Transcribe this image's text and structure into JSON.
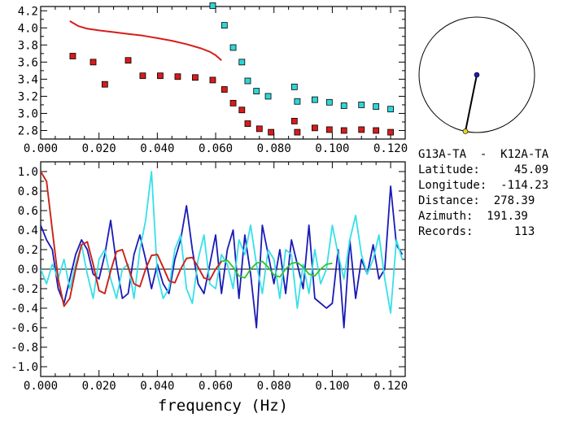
{
  "chart_data": [
    {
      "type": "scatter",
      "xlim": [
        0.0,
        0.125
      ],
      "ylim": [
        2.7,
        4.25
      ],
      "x_ticks": [
        "0.000",
        "0.020",
        "0.040",
        "0.060",
        "0.080",
        "0.100",
        "0.120"
      ],
      "y_ticks": [
        "2.8",
        "3.0",
        "3.2",
        "3.4",
        "3.6",
        "3.8",
        "4.0",
        "4.2"
      ],
      "grid": false,
      "series": [
        {
          "kind": "line",
          "color": "#d81b1b",
          "x": [
            0.01,
            0.013,
            0.016,
            0.02,
            0.025,
            0.03,
            0.035,
            0.04,
            0.045,
            0.05,
            0.055,
            0.058,
            0.06,
            0.062
          ],
          "y": [
            4.08,
            4.02,
            3.99,
            3.97,
            3.95,
            3.93,
            3.91,
            3.88,
            3.85,
            3.81,
            3.76,
            3.72,
            3.68,
            3.62
          ]
        },
        {
          "kind": "markers",
          "color": "#d81b1b",
          "x": [
            0.011,
            0.018,
            0.022,
            0.03,
            0.035,
            0.041,
            0.047,
            0.053,
            0.059,
            0.063,
            0.066,
            0.069,
            0.071,
            0.075,
            0.079,
            0.087,
            0.088,
            0.094,
            0.099,
            0.104,
            0.11,
            0.115,
            0.12
          ],
          "y": [
            3.67,
            3.6,
            3.34,
            3.62,
            3.44,
            3.44,
            3.43,
            3.42,
            3.39,
            3.28,
            3.12,
            3.04,
            2.88,
            2.82,
            2.78,
            2.91,
            2.78,
            2.83,
            2.81,
            2.8,
            2.81,
            2.8,
            2.78
          ]
        },
        {
          "kind": "markers",
          "color": "#2fd6d6",
          "x": [
            0.059,
            0.063,
            0.066,
            0.069,
            0.071,
            0.074,
            0.078,
            0.087,
            0.088,
            0.094,
            0.099,
            0.104,
            0.11,
            0.115,
            0.12
          ],
          "y": [
            4.26,
            4.03,
            3.77,
            3.6,
            3.38,
            3.26,
            3.2,
            3.31,
            3.14,
            3.16,
            3.13,
            3.09,
            3.1,
            3.08,
            3.05
          ]
        }
      ]
    },
    {
      "type": "line",
      "xlim": [
        0.0,
        0.125
      ],
      "ylim": [
        -1.1,
        1.1
      ],
      "x_ticks": [
        "0.000",
        "0.020",
        "0.040",
        "0.060",
        "0.080",
        "0.100",
        "0.120"
      ],
      "y_ticks": [
        "1.0",
        "0.8",
        "0.6",
        "0.4",
        "0.2",
        "0.0",
        "-0.2",
        "-0.4",
        "-0.6",
        "-0.8",
        "-1.0"
      ],
      "xlabel": "frequency (Hz)",
      "zero_line": true,
      "series": [
        {
          "color": "#1a1ab8",
          "x": [
            0.0,
            0.002,
            0.004,
            0.006,
            0.008,
            0.01,
            0.012,
            0.014,
            0.016,
            0.018,
            0.02,
            0.022,
            0.024,
            0.026,
            0.028,
            0.03,
            0.032,
            0.034,
            0.036,
            0.038,
            0.04,
            0.042,
            0.044,
            0.046,
            0.048,
            0.05,
            0.052,
            0.054,
            0.056,
            0.058,
            0.06,
            0.062,
            0.064,
            0.066,
            0.068,
            0.07,
            0.072,
            0.074,
            0.076,
            0.078,
            0.08,
            0.082,
            0.084,
            0.086,
            0.088,
            0.09,
            0.092,
            0.094,
            0.096,
            0.098,
            0.1,
            0.102,
            0.104,
            0.106,
            0.108,
            0.11,
            0.112,
            0.114,
            0.116,
            0.118,
            0.12,
            0.122,
            0.124
          ],
          "y": [
            0.45,
            0.3,
            0.2,
            -0.2,
            -0.35,
            -0.1,
            0.15,
            0.3,
            0.2,
            -0.05,
            -0.1,
            0.15,
            0.5,
            0.05,
            -0.3,
            -0.25,
            0.15,
            0.35,
            0.1,
            -0.2,
            0.05,
            -0.15,
            -0.25,
            0.1,
            0.3,
            0.65,
            0.2,
            -0.15,
            -0.25,
            0.05,
            0.35,
            -0.25,
            0.2,
            0.4,
            -0.3,
            0.35,
            -0.05,
            -0.6,
            0.45,
            0.15,
            -0.15,
            0.2,
            -0.25,
            0.3,
            0.05,
            -0.2,
            0.45,
            -0.3,
            -0.35,
            -0.4,
            -0.35,
            0.2,
            -0.6,
            0.3,
            -0.3,
            0.1,
            -0.05,
            0.25,
            -0.1,
            0.0,
            0.85,
            0.25,
            0.15
          ]
        },
        {
          "color": "#36e0e8",
          "x": [
            0.0,
            0.002,
            0.004,
            0.006,
            0.008,
            0.01,
            0.012,
            0.014,
            0.016,
            0.018,
            0.02,
            0.022,
            0.024,
            0.026,
            0.028,
            0.03,
            0.032,
            0.034,
            0.036,
            0.038,
            0.04,
            0.042,
            0.044,
            0.046,
            0.048,
            0.05,
            0.052,
            0.054,
            0.056,
            0.058,
            0.06,
            0.062,
            0.064,
            0.066,
            0.068,
            0.07,
            0.072,
            0.074,
            0.076,
            0.078,
            0.08,
            0.082,
            0.084,
            0.086,
            0.088,
            0.09,
            0.092,
            0.094,
            0.096,
            0.098,
            0.1,
            0.102,
            0.104,
            0.106,
            0.108,
            0.11,
            0.112,
            0.114,
            0.116,
            0.118,
            0.12,
            0.122,
            0.124
          ],
          "y": [
            0.0,
            -0.15,
            0.05,
            -0.1,
            0.1,
            -0.2,
            0.05,
            0.25,
            -0.05,
            -0.3,
            0.1,
            0.2,
            -0.1,
            -0.3,
            0.0,
            0.05,
            -0.3,
            0.2,
            0.5,
            1.0,
            -0.05,
            -0.3,
            -0.2,
            0.2,
            0.35,
            -0.2,
            -0.35,
            0.1,
            0.35,
            -0.15,
            -0.2,
            0.15,
            0.05,
            -0.2,
            0.3,
            0.15,
            0.45,
            0.05,
            -0.25,
            0.2,
            0.1,
            -0.3,
            0.2,
            0.15,
            -0.4,
            0.05,
            -0.25,
            0.2,
            -0.15,
            0.0,
            0.45,
            0.15,
            -0.1,
            0.3,
            0.55,
            0.15,
            -0.05,
            0.1,
            0.35,
            -0.1,
            -0.45,
            0.3,
            0.1
          ]
        },
        {
          "color": "#2ec42e",
          "x": [
            0.0,
            0.002,
            0.004,
            0.006,
            0.008,
            0.01,
            0.012,
            0.014,
            0.016,
            0.018,
            0.02,
            0.022,
            0.024,
            0.026,
            0.028,
            0.03,
            0.032,
            0.034,
            0.036,
            0.038,
            0.04,
            0.042,
            0.044,
            0.046,
            0.048,
            0.05,
            0.052,
            0.054,
            0.056,
            0.058,
            0.06,
            0.062,
            0.064,
            0.066,
            0.068,
            0.07,
            0.072,
            0.074,
            0.076,
            0.078,
            0.08,
            0.082,
            0.084,
            0.086,
            0.088,
            0.09,
            0.092,
            0.094,
            0.096,
            0.098,
            0.1
          ],
          "y": [
            1.0,
            0.9,
            0.4,
            -0.1,
            -0.38,
            -0.3,
            0.0,
            0.25,
            0.28,
            0.05,
            -0.22,
            -0.25,
            -0.02,
            0.18,
            0.2,
            0.02,
            -0.15,
            -0.18,
            0.0,
            0.14,
            0.15,
            0.02,
            -0.12,
            -0.14,
            0.0,
            0.11,
            0.12,
            0.02,
            -0.09,
            -0.11,
            0.0,
            0.08,
            0.09,
            0.02,
            -0.07,
            -0.09,
            0.0,
            0.06,
            0.08,
            0.02,
            -0.06,
            -0.08,
            0.0,
            0.06,
            0.07,
            0.02,
            -0.05,
            -0.07,
            0.0,
            0.05,
            0.06
          ]
        },
        {
          "color": "#d81b1b",
          "x": [
            0.0,
            0.002,
            0.004,
            0.006,
            0.008,
            0.01,
            0.012,
            0.014,
            0.016,
            0.018,
            0.02,
            0.022,
            0.024,
            0.026,
            0.028,
            0.03,
            0.032,
            0.034,
            0.036,
            0.038,
            0.04,
            0.042,
            0.044,
            0.046,
            0.048,
            0.05,
            0.052,
            0.054,
            0.056,
            0.058,
            0.06,
            0.062
          ],
          "y": [
            1.0,
            0.9,
            0.4,
            -0.1,
            -0.38,
            -0.3,
            0.0,
            0.25,
            0.28,
            0.05,
            -0.22,
            -0.25,
            -0.02,
            0.18,
            0.2,
            0.02,
            -0.15,
            -0.18,
            0.0,
            0.14,
            0.15,
            0.02,
            -0.12,
            -0.14,
            0.0,
            0.11,
            0.12,
            0.02,
            -0.09,
            -0.11,
            0.0,
            0.08
          ]
        }
      ]
    }
  ],
  "info": {
    "lines": [
      "G13A-TA  -  K12A-TA",
      "Latitude:     45.09",
      "Longitude:  -114.23",
      "Distance:  278.39",
      "Azimuth:  191.39",
      "Records:      113"
    ]
  },
  "azimuth_plot": {
    "azimuth_deg": 191.39,
    "circle_color": "#000000",
    "center_marker_color": "#1a1ab8",
    "edge_marker_color": "#f2d21b"
  }
}
